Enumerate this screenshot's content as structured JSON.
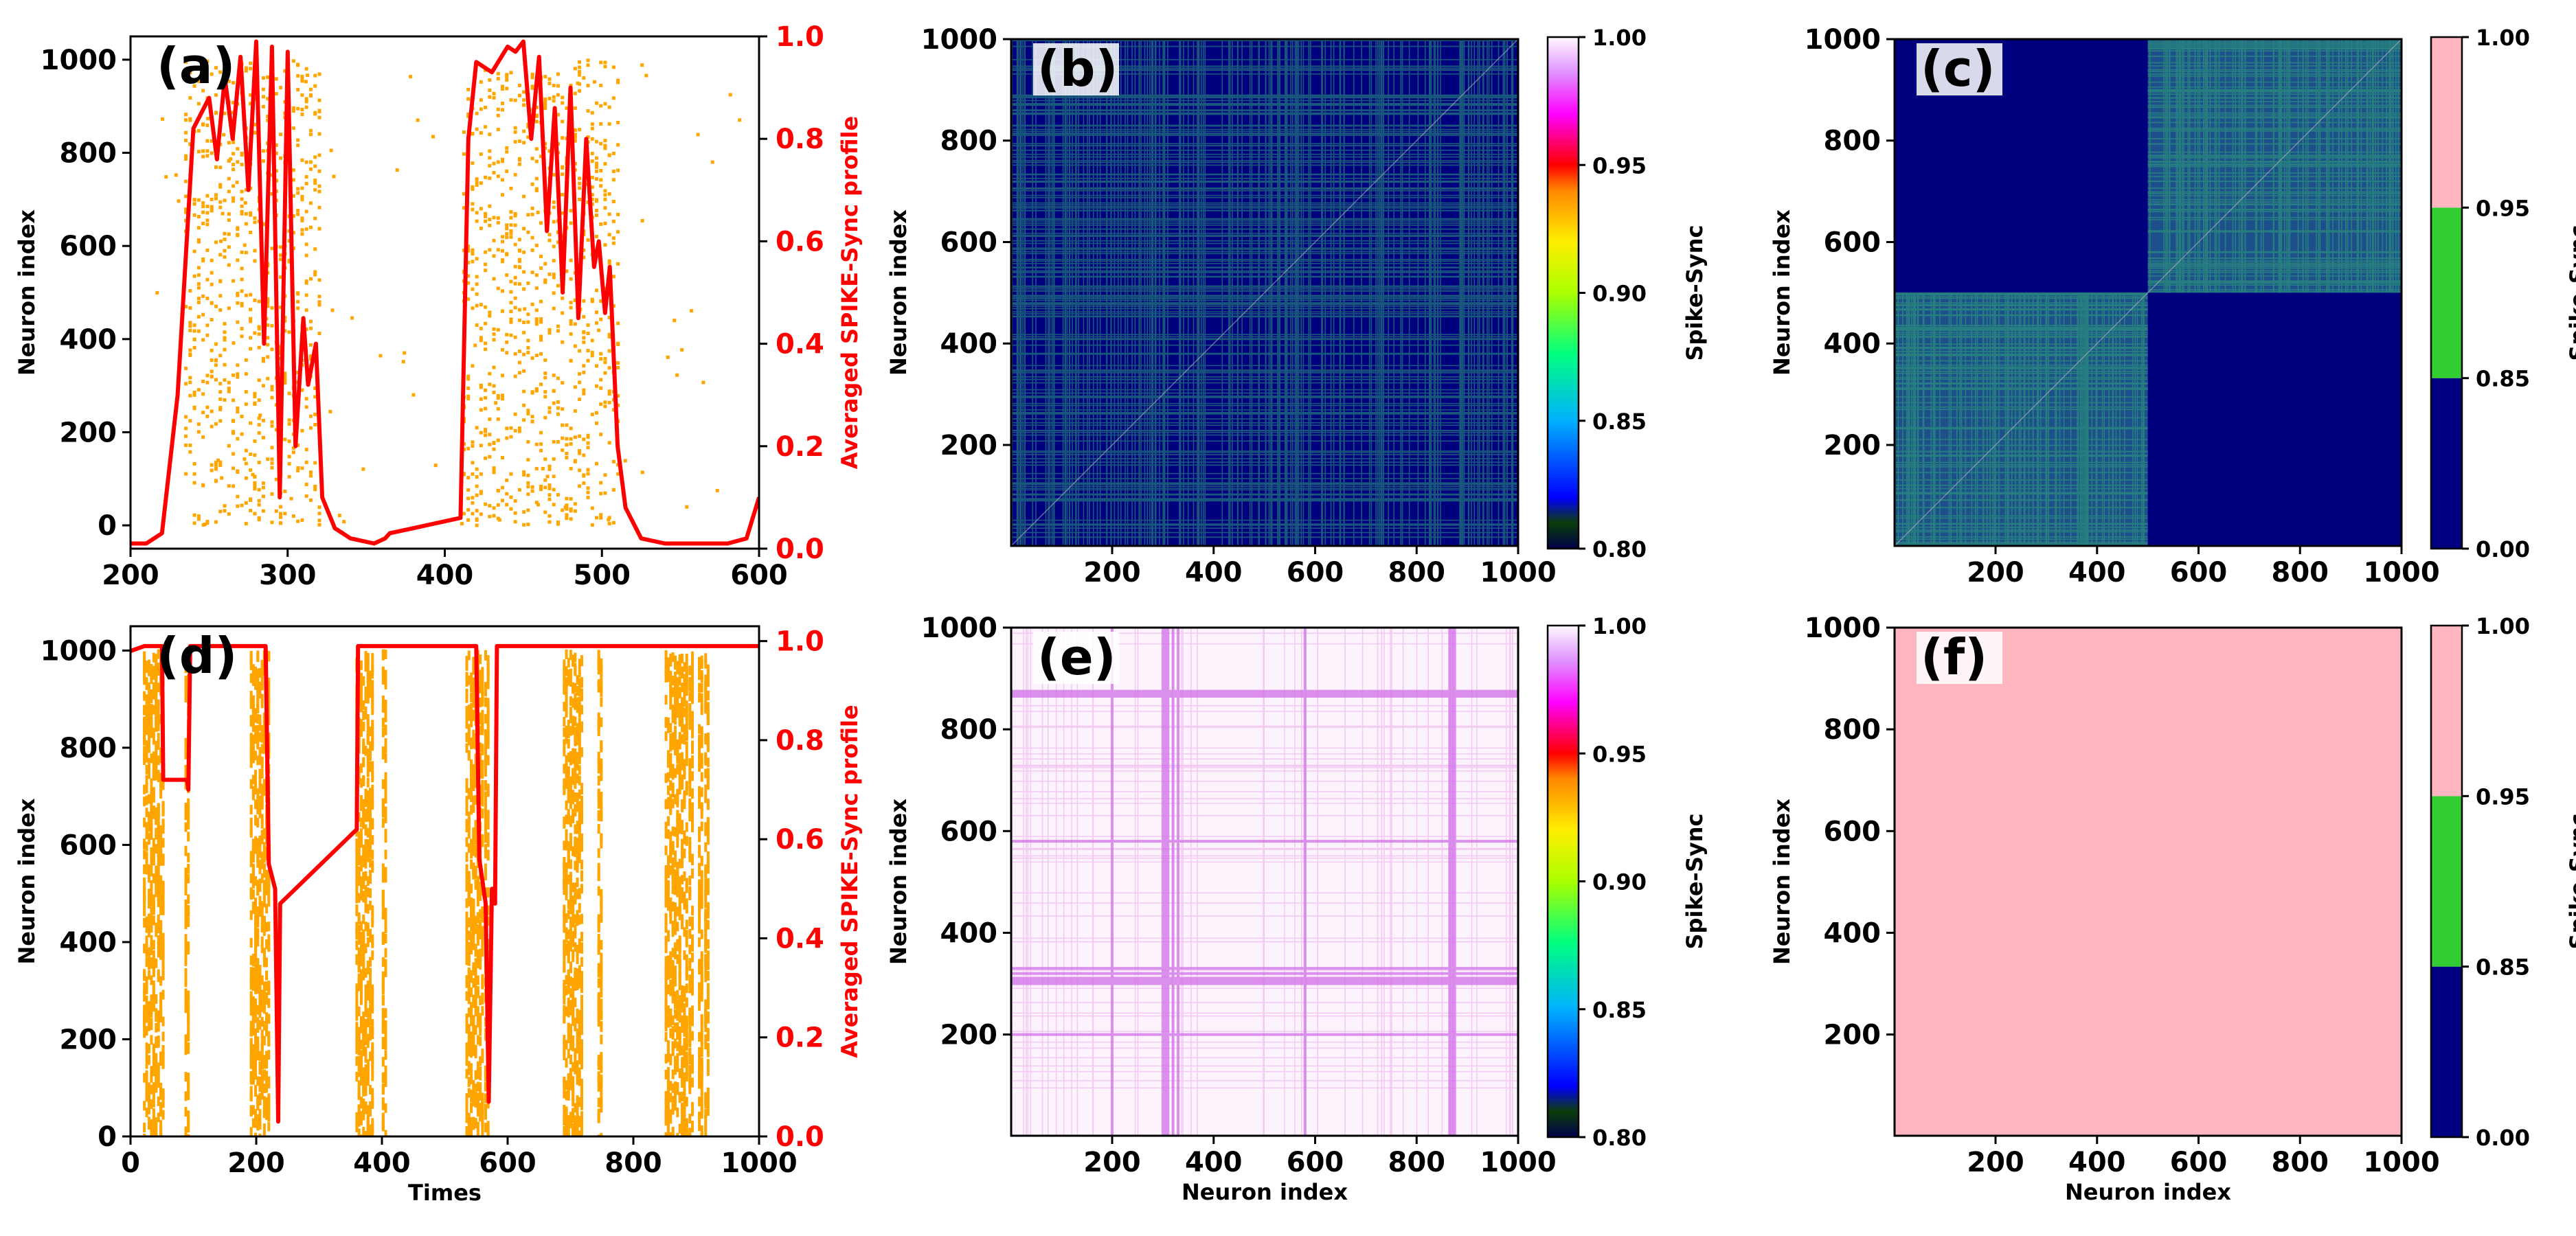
{
  "colors": {
    "raster": "#FFA500",
    "profile": "#FF0000",
    "matrix_background": "#00007F",
    "matrix_green": "#2F9E7A",
    "pink": "#FFB6C1",
    "blue_band": "#000080",
    "green_band": "#32CD32",
    "accent_axis_red": "#FF0000"
  },
  "chart_data": [
    {
      "id": "a",
      "panel_label": "(a)",
      "type": "scatter",
      "subtype": "spike-raster-with-profile",
      "xlim": [
        200,
        600
      ],
      "x_ticks": [
        "200",
        "300",
        "400",
        "500",
        "600"
      ],
      "ylim": [
        -50,
        1050
      ],
      "y_ticks": [
        "0",
        "200",
        "400",
        "600",
        "800",
        "1000"
      ],
      "ylabel": "Neuron index",
      "xlabel": "",
      "y2lim": [
        0,
        1
      ],
      "y2_ticks": [
        "0.0",
        "0.2",
        "0.4",
        "0.6",
        "0.8",
        "1.0"
      ],
      "y2label": "Averaged SPIKE-Sync profile",
      "raster_bursts": [
        {
          "x_start": 235,
          "x_end": 320
        },
        {
          "x_start": 412,
          "x_end": 510
        }
      ],
      "profile": [
        [
          200,
          0.01
        ],
        [
          210,
          0.01
        ],
        [
          220,
          0.03
        ],
        [
          230,
          0.3
        ],
        [
          240,
          0.82
        ],
        [
          250,
          0.88
        ],
        [
          255,
          0.76
        ],
        [
          260,
          0.92
        ],
        [
          265,
          0.8
        ],
        [
          270,
          0.96
        ],
        [
          275,
          0.7
        ],
        [
          280,
          0.99
        ],
        [
          285,
          0.4
        ],
        [
          290,
          0.98
        ],
        [
          295,
          0.1
        ],
        [
          300,
          0.97
        ],
        [
          305,
          0.2
        ],
        [
          310,
          0.45
        ],
        [
          313,
          0.32
        ],
        [
          318,
          0.4
        ],
        [
          322,
          0.1
        ],
        [
          330,
          0.04
        ],
        [
          340,
          0.02
        ],
        [
          355,
          0.01
        ],
        [
          362,
          0.02
        ],
        [
          365,
          0.03
        ],
        [
          380,
          0.04
        ],
        [
          395,
          0.05
        ],
        [
          410,
          0.06
        ],
        [
          415,
          0.8
        ],
        [
          420,
          0.95
        ],
        [
          430,
          0.93
        ],
        [
          440,
          0.98
        ],
        [
          445,
          0.97
        ],
        [
          450,
          0.99
        ],
        [
          455,
          0.8
        ],
        [
          460,
          0.96
        ],
        [
          465,
          0.62
        ],
        [
          470,
          0.86
        ],
        [
          475,
          0.5
        ],
        [
          480,
          0.9
        ],
        [
          485,
          0.45
        ],
        [
          490,
          0.8
        ],
        [
          495,
          0.55
        ],
        [
          498,
          0.6
        ],
        [
          502,
          0.46
        ],
        [
          505,
          0.55
        ],
        [
          510,
          0.2
        ],
        [
          515,
          0.08
        ],
        [
          525,
          0.02
        ],
        [
          540,
          0.01
        ],
        [
          580,
          0.01
        ],
        [
          592,
          0.02
        ],
        [
          600,
          0.1
        ]
      ]
    },
    {
      "id": "b",
      "panel_label": "(b)",
      "type": "heatmap",
      "xlim": [
        1,
        1000
      ],
      "ylim": [
        1,
        1000
      ],
      "x_ticks": [
        "200",
        "400",
        "600",
        "800",
        "1000"
      ],
      "y_ticks": [
        "200",
        "400",
        "600",
        "800",
        "1000"
      ],
      "xlabel": "",
      "ylabel": "Neuron index",
      "colorbar": {
        "label": "Spike-Sync",
        "range": [
          0.8,
          1.0
        ],
        "ticks": [
          "0.80",
          "0.85",
          "0.90",
          "0.95",
          "1.00"
        ]
      },
      "pattern": "noisy-uniform"
    },
    {
      "id": "c",
      "panel_label": "(c)",
      "type": "heatmap",
      "xlim": [
        1,
        1000
      ],
      "ylim": [
        1,
        1000
      ],
      "x_ticks": [
        "200",
        "400",
        "600",
        "800",
        "1000"
      ],
      "y_ticks": [
        "200",
        "400",
        "600",
        "800",
        "1000"
      ],
      "xlabel": "",
      "ylabel": "Neuron index",
      "colorbar": {
        "label": "Spike-Sync",
        "bands": [
          0,
          0.85,
          0.95,
          1.0
        ],
        "ticks": [
          "0.00",
          "0.85",
          "0.95",
          "1.00"
        ]
      },
      "pattern": "two-block"
    },
    {
      "id": "d",
      "panel_label": "(d)",
      "type": "scatter",
      "subtype": "spike-raster-with-profile",
      "xlim": [
        0,
        1000
      ],
      "x_ticks": [
        "0",
        "200",
        "400",
        "600",
        "800",
        "1000"
      ],
      "ylim": [
        0,
        1050
      ],
      "y_ticks": [
        "0",
        "200",
        "400",
        "600",
        "800",
        "1000"
      ],
      "ylabel": "Neuron index",
      "xlabel": "Times",
      "y2lim": [
        0,
        1.03
      ],
      "y2_ticks": [
        "0.0",
        "0.2",
        "0.4",
        "0.6",
        "0.8",
        "1.0"
      ],
      "y2label": "Averaged SPIKE-Sync profile",
      "raster_bursts": [
        {
          "x_start": 22,
          "x_end": 52
        },
        {
          "x_start": 88,
          "x_end": 92
        },
        {
          "x_start": 192,
          "x_end": 220
        },
        {
          "x_start": 360,
          "x_end": 385
        },
        {
          "x_start": 402,
          "x_end": 406
        },
        {
          "x_start": 535,
          "x_end": 560
        },
        {
          "x_start": 565,
          "x_end": 569
        },
        {
          "x_start": 690,
          "x_end": 718
        },
        {
          "x_start": 745,
          "x_end": 749
        },
        {
          "x_start": 852,
          "x_end": 885
        },
        {
          "x_start": 890,
          "x_end": 894
        },
        {
          "x_start": 905,
          "x_end": 909
        },
        {
          "x_start": 915,
          "x_end": 919
        }
      ],
      "profile": [
        [
          0,
          0.98
        ],
        [
          22,
          0.99
        ],
        [
          50,
          0.99
        ],
        [
          52,
          0.72
        ],
        [
          90,
          0.72
        ],
        [
          92,
          0.7
        ],
        [
          95,
          0.99
        ],
        [
          215,
          0.99
        ],
        [
          220,
          0.55
        ],
        [
          230,
          0.5
        ],
        [
          235,
          0.03
        ],
        [
          238,
          0.47
        ],
        [
          360,
          0.62
        ],
        [
          362,
          0.99
        ],
        [
          550,
          0.99
        ],
        [
          555,
          0.56
        ],
        [
          565,
          0.47
        ],
        [
          570,
          0.07
        ],
        [
          575,
          0.5
        ],
        [
          580,
          0.47
        ],
        [
          583,
          0.99
        ],
        [
          1000,
          0.99
        ]
      ]
    },
    {
      "id": "e",
      "panel_label": "(e)",
      "type": "heatmap",
      "xlim": [
        1,
        1000
      ],
      "ylim": [
        1,
        1000
      ],
      "x_ticks": [
        "200",
        "400",
        "600",
        "800",
        "1000"
      ],
      "y_ticks": [
        "200",
        "400",
        "600",
        "800",
        "1000"
      ],
      "xlabel": "Neuron index",
      "ylabel": "Neuron index",
      "colorbar": {
        "label": "Spike-Sync",
        "range": [
          0.8,
          1.0
        ],
        "ticks": [
          "0.80",
          "0.85",
          "0.90",
          "0.95",
          "1.00"
        ]
      },
      "pattern": "near-one-with-lines",
      "strong_lines": [
        200,
        300,
        305,
        310,
        320,
        330,
        580,
        865,
        870,
        875
      ]
    },
    {
      "id": "f",
      "panel_label": "(f)",
      "type": "heatmap",
      "xlim": [
        1,
        1000
      ],
      "ylim": [
        1,
        1000
      ],
      "x_ticks": [
        "200",
        "400",
        "600",
        "800",
        "1000"
      ],
      "y_ticks": [
        "200",
        "400",
        "600",
        "800",
        "1000"
      ],
      "xlabel": "Neuron index",
      "ylabel": "Neuron index",
      "colorbar": {
        "label": "Spike-Sync",
        "bands": [
          0,
          0.85,
          0.95,
          1.0
        ],
        "ticks": [
          "0.00",
          "0.85",
          "0.95",
          "1.00"
        ]
      },
      "pattern": "uniform-pink"
    }
  ]
}
